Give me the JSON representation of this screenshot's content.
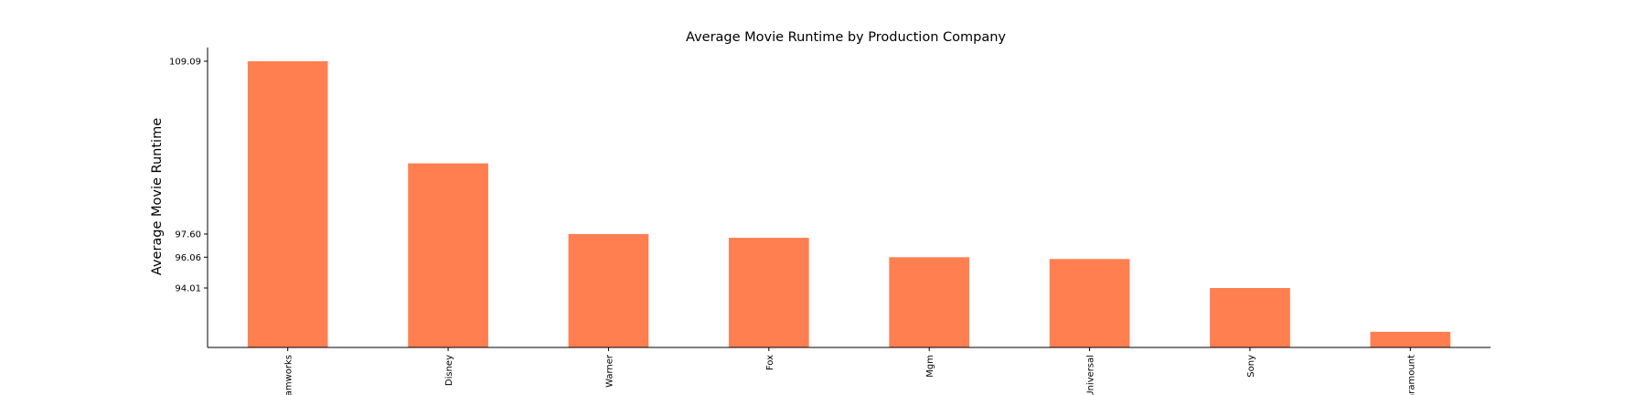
{
  "chart_data": {
    "type": "bar",
    "title": "Average Movie Runtime by Production Company",
    "xlabel": "",
    "ylabel": "Average Movie Runtime",
    "categories": [
      "Dreamworks",
      "Disney",
      "Warner",
      "Fox",
      "Mgm",
      "Universal",
      "Sony",
      "Paramount"
    ],
    "visible_category_labels": [
      "amworks",
      "Disney",
      "Warner",
      "Fox",
      "Mgm",
      "Universal",
      "Sony",
      "aramount"
    ],
    "values": [
      109.09,
      102.3,
      97.6,
      97.35,
      96.06,
      95.94,
      94.01,
      91.1
    ],
    "ylim": [
      90.0,
      110.0
    ],
    "yticks": [
      94.01,
      96.06,
      97.6,
      109.09
    ],
    "ytick_labels": [
      "94.01",
      "96.06",
      "97.60",
      "109.09"
    ],
    "bar_color": "#ff7f50",
    "grid": false,
    "legend": "none"
  }
}
